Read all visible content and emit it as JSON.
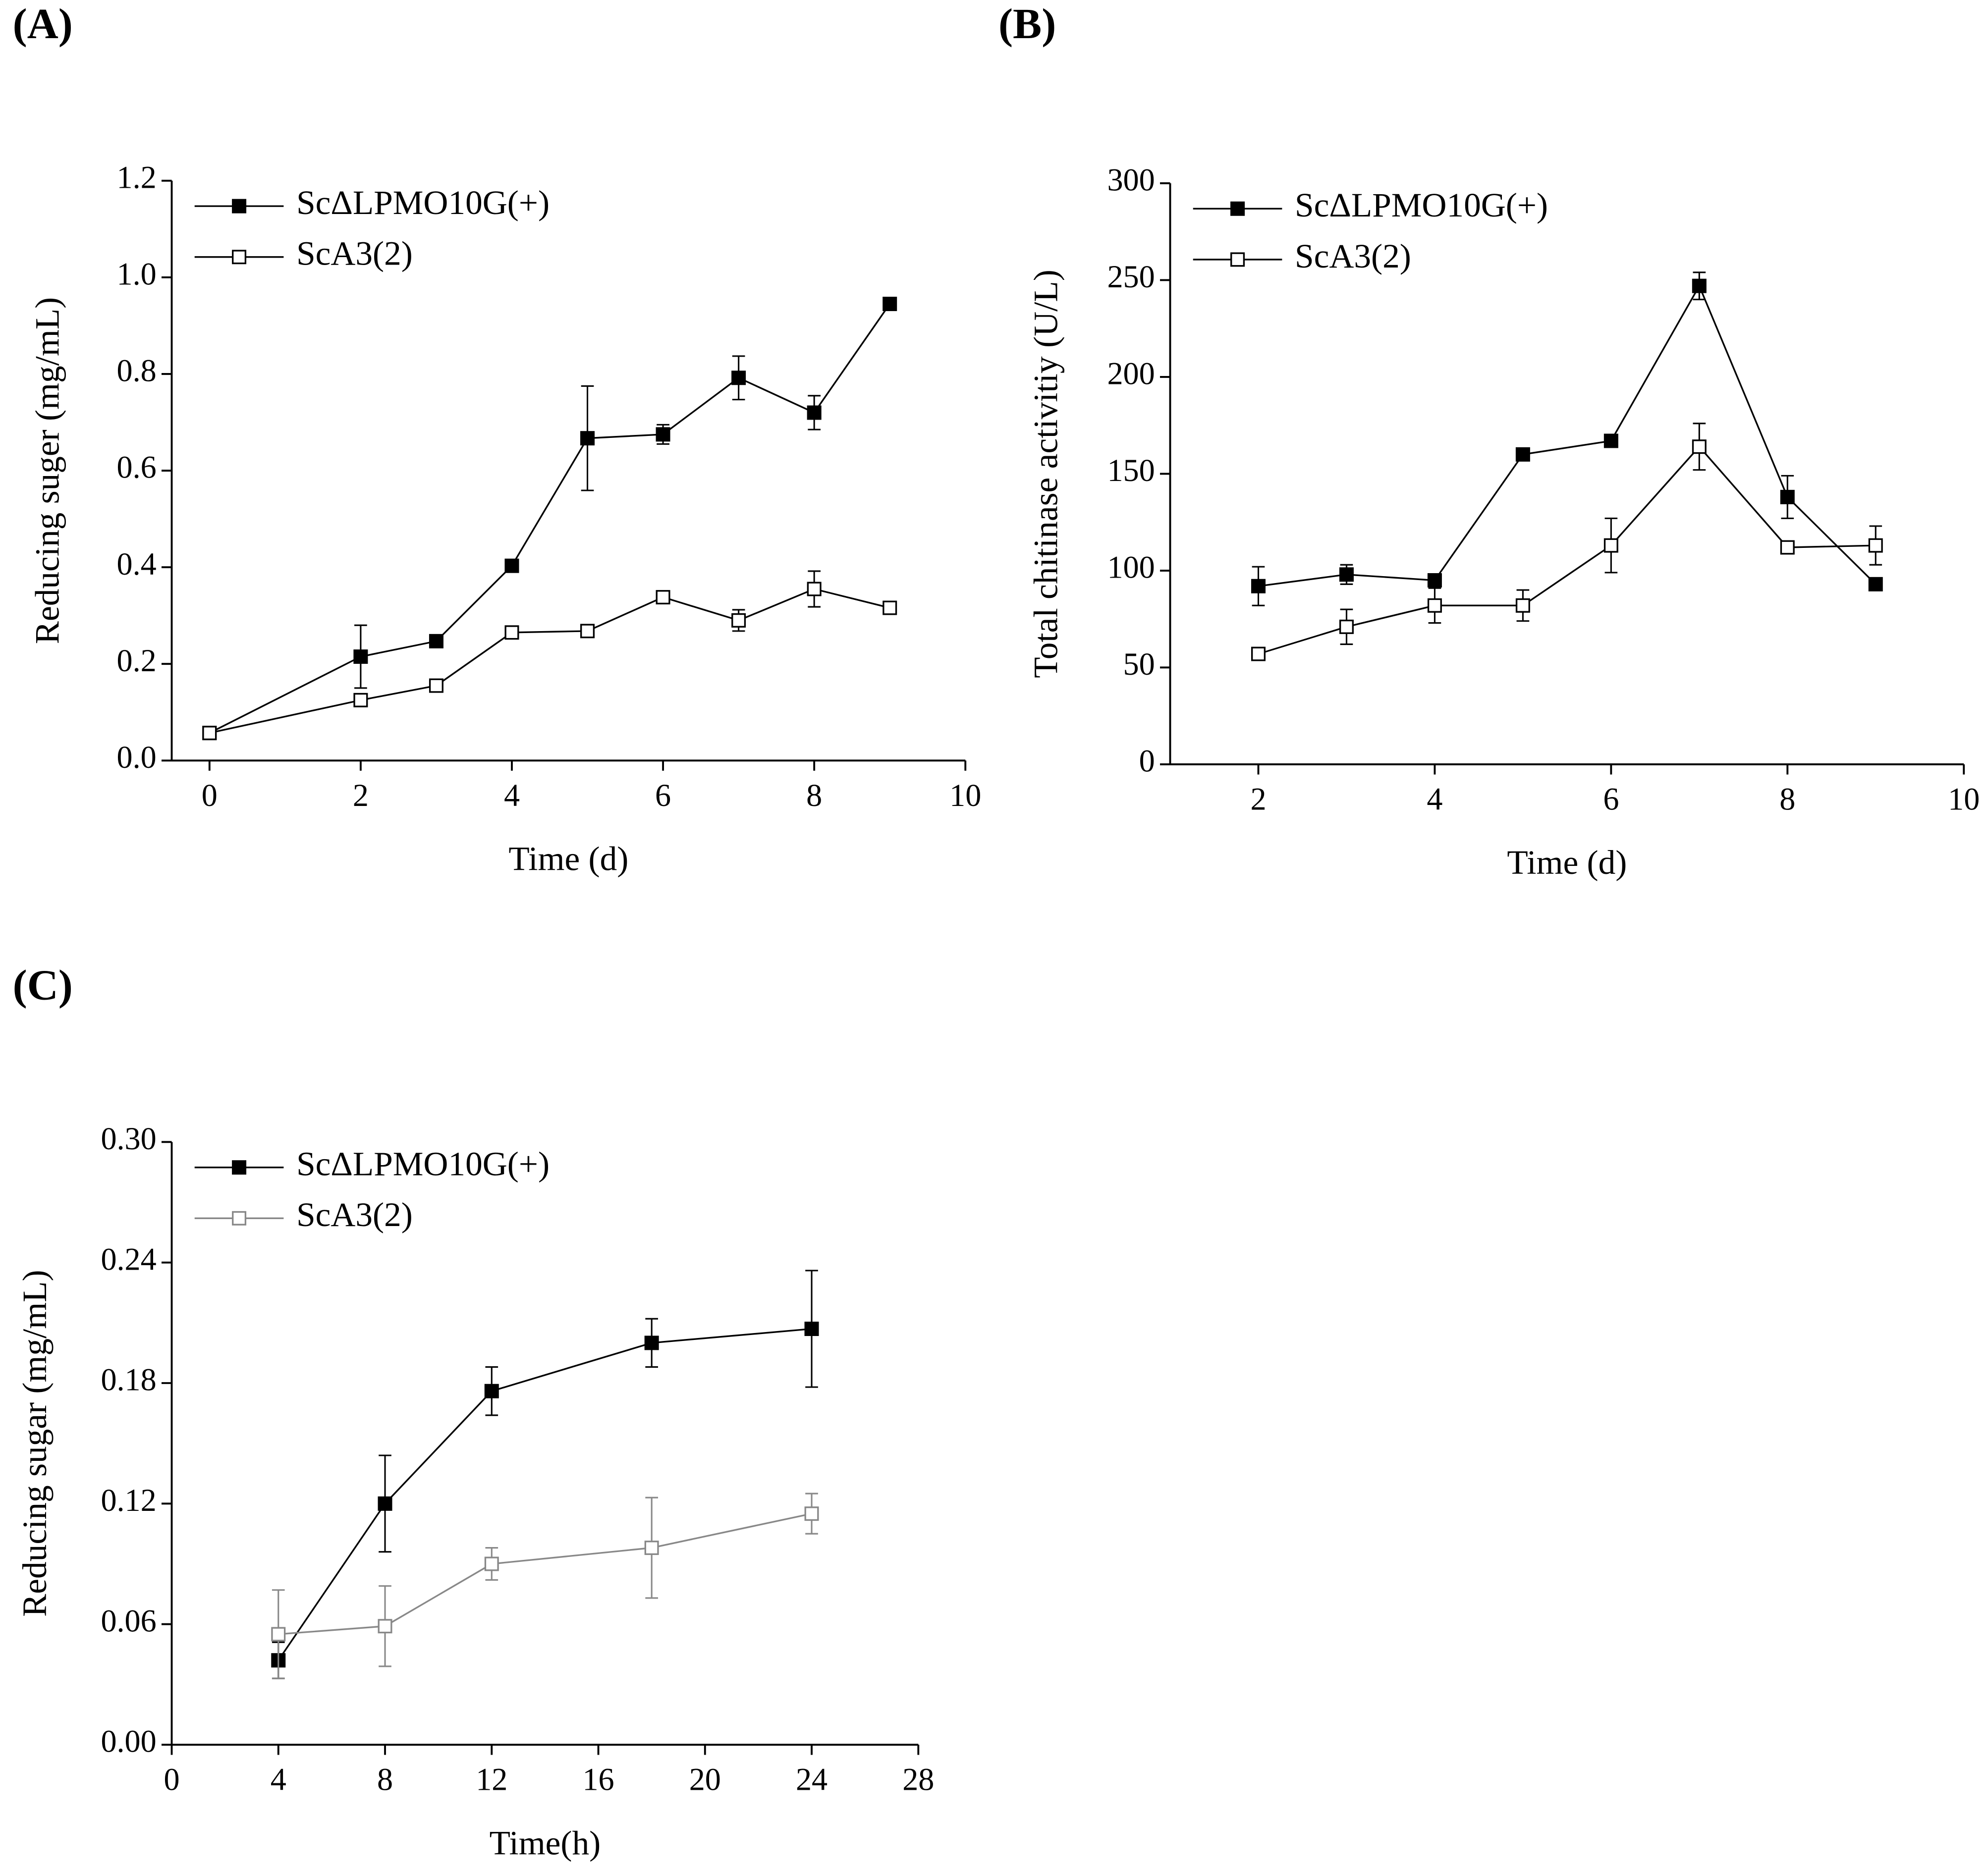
{
  "chart_data": [
    {
      "type": "line",
      "label": "(A)",
      "x_label": "Time (d)",
      "y_label": "Reducing suger (mg/mL)",
      "xlim": [
        -0.5,
        10
      ],
      "xticks": [
        0,
        2,
        4,
        6,
        8,
        10
      ],
      "ylim": [
        0,
        1.2
      ],
      "yticks": [
        {
          "value": 0,
          "label": "0.0"
        },
        0.2,
        0.4,
        0.6,
        0.8,
        {
          "value": 1,
          "label": "1.0"
        },
        1.2
      ],
      "x": [
        0,
        2,
        3,
        4,
        5,
        6,
        7,
        8,
        9
      ],
      "series": [
        {
          "name": "ScΔLPMO10G(+)",
          "color": "#000000",
          "marker_fill": "#000000",
          "values": [
            0.057,
            0.215,
            0.247,
            0.403,
            0.667,
            0.675,
            0.792,
            0.72,
            0.945
          ],
          "errors": [
            0.005,
            0.065,
            0.01,
            0.01,
            0.108,
            0.02,
            0.045,
            0.035,
            0.012
          ]
        },
        {
          "name": "ScA3(2)",
          "color": "#000000",
          "marker_fill": "#ffffff",
          "values": [
            0.057,
            0.125,
            0.155,
            0.265,
            0.268,
            0.338,
            0.29,
            0.355,
            0.316
          ],
          "errors": [
            0.005,
            0.01,
            0.01,
            0.01,
            0.01,
            0.01,
            0.022,
            0.037,
            0.01
          ]
        }
      ]
    },
    {
      "type": "line",
      "label": "(B)",
      "x_label": "Time (d)",
      "y_label": "Total chitinase activitiy (U/L)",
      "xlim": [
        1,
        10
      ],
      "xticks": [
        2,
        4,
        6,
        8,
        10
      ],
      "ylim": [
        0,
        300
      ],
      "yticks": [
        0,
        50,
        100,
        150,
        200,
        250,
        300
      ],
      "x": [
        2,
        3,
        4,
        5,
        6,
        7,
        8,
        9
      ],
      "series": [
        {
          "name": "ScΔLPMO10G(+)",
          "color": "#000000",
          "marker_fill": "#000000",
          "values": [
            92,
            98,
            95,
            160,
            167,
            247,
            138,
            93
          ],
          "errors": [
            10,
            5,
            3,
            2,
            3,
            7,
            11,
            2
          ]
        },
        {
          "name": "ScA3(2)",
          "color": "#000000",
          "marker_fill": "#ffffff",
          "values": [
            57,
            71,
            82,
            82,
            113,
            164,
            112,
            113
          ],
          "errors": [
            3,
            9,
            9,
            8,
            14,
            12,
            2,
            10
          ]
        }
      ]
    },
    {
      "type": "line",
      "label": "(C)",
      "x_label": "Time(h)",
      "y_label": "Reducing sugar (mg/mL)",
      "xlim": [
        0,
        28
      ],
      "xticks": [
        0,
        4,
        8,
        12,
        16,
        20,
        24,
        28
      ],
      "ylim": [
        0,
        0.3
      ],
      "yticks": [
        {
          "value": 0,
          "label": "0.00"
        },
        {
          "value": 0.06,
          "label": "0.06"
        },
        {
          "value": 0.12,
          "label": "0.12"
        },
        {
          "value": 0.18,
          "label": "0.18"
        },
        {
          "value": 0.24,
          "label": "0.24"
        },
        {
          "value": 0.3,
          "label": "0.30"
        }
      ],
      "x": [
        4,
        8,
        12,
        18,
        24
      ],
      "series": [
        {
          "name": "ScΔLPMO10G(+)",
          "color": "#000000",
          "marker_fill": "#000000",
          "values": [
            0.042,
            0.12,
            0.176,
            0.2,
            0.207
          ],
          "errors": [
            0.009,
            0.024,
            0.012,
            0.012,
            0.029
          ]
        },
        {
          "name": "ScA3(2)",
          "color": "#888888",
          "marker_fill": "#ffffff",
          "values": [
            0.055,
            0.059,
            0.09,
            0.098,
            0.115
          ],
          "errors": [
            0.022,
            0.02,
            0.008,
            0.025,
            0.01
          ]
        }
      ]
    }
  ]
}
